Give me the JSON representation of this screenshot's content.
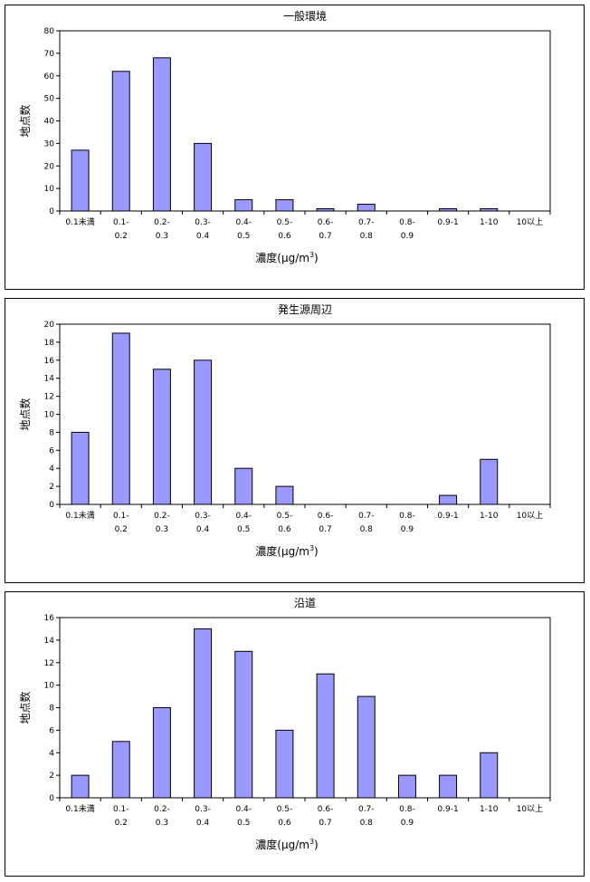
{
  "chart_data": [
    {
      "type": "bar",
      "title": "一般環境",
      "categories": [
        [
          "0.1未満"
        ],
        [
          "0.1-",
          "0.2"
        ],
        [
          "0.2-",
          "0.3"
        ],
        [
          "0.3-",
          "0.4"
        ],
        [
          "0.4-",
          "0.5"
        ],
        [
          "0.5-",
          "0.6"
        ],
        [
          "0.6-",
          "0.7"
        ],
        [
          "0.7-",
          "0.8"
        ],
        [
          "0.8-",
          "0.9"
        ],
        [
          "0.9-1"
        ],
        [
          "1-10"
        ],
        [
          "10以上"
        ]
      ],
      "values": [
        27,
        62,
        68,
        30,
        5,
        5,
        1,
        3,
        0,
        1,
        1,
        0
      ],
      "ylabel": "地点数",
      "xlabel_main": "濃度(μg/m",
      "xlabel_sup": "3",
      "xlabel_close": ")",
      "ylim": [
        0,
        80
      ],
      "yticks": [
        0,
        10,
        20,
        30,
        40,
        50,
        60,
        70,
        80
      ],
      "color": "#9999ff"
    },
    {
      "type": "bar",
      "title": "発生源周辺",
      "categories": [
        [
          "0.1未満"
        ],
        [
          "0.1-",
          "0.2"
        ],
        [
          "0.2-",
          "0.3"
        ],
        [
          "0.3-",
          "0.4"
        ],
        [
          "0.4-",
          "0.5"
        ],
        [
          "0.5-",
          "0.6"
        ],
        [
          "0.6-",
          "0.7"
        ],
        [
          "0.7-",
          "0.8"
        ],
        [
          "0.8-",
          "0.9"
        ],
        [
          "0.9-1"
        ],
        [
          "1-10"
        ],
        [
          "10以上"
        ]
      ],
      "values": [
        8,
        19,
        15,
        16,
        4,
        2,
        0,
        0,
        0,
        1,
        5,
        0
      ],
      "ylabel": "地点数",
      "xlabel_main": "濃度(μg/m",
      "xlabel_sup": "3",
      "xlabel_close": ")",
      "ylim": [
        0,
        20
      ],
      "yticks": [
        0,
        2,
        4,
        6,
        8,
        10,
        12,
        14,
        16,
        18,
        20
      ],
      "color": "#9999ff"
    },
    {
      "type": "bar",
      "title": "沿道",
      "categories": [
        [
          "0.1未満"
        ],
        [
          "0.1-",
          "0.2"
        ],
        [
          "0.2-",
          "0.3"
        ],
        [
          "0.3-",
          "0.4"
        ],
        [
          "0.4-",
          "0.5"
        ],
        [
          "0.5-",
          "0.6"
        ],
        [
          "0.6-",
          "0.7"
        ],
        [
          "0.7-",
          "0.8"
        ],
        [
          "0.8-",
          "0.9"
        ],
        [
          "0.9-1"
        ],
        [
          "1-10"
        ],
        [
          "10以上"
        ]
      ],
      "values": [
        2,
        5,
        8,
        15,
        13,
        6,
        11,
        9,
        2,
        2,
        4,
        0
      ],
      "ylabel": "地点数",
      "xlabel_main": "濃度(μg/m",
      "xlabel_sup": "3",
      "xlabel_close": ")",
      "ylim": [
        0,
        16
      ],
      "yticks": [
        0,
        2,
        4,
        6,
        8,
        10,
        12,
        14,
        16
      ],
      "color": "#9999ff"
    }
  ]
}
